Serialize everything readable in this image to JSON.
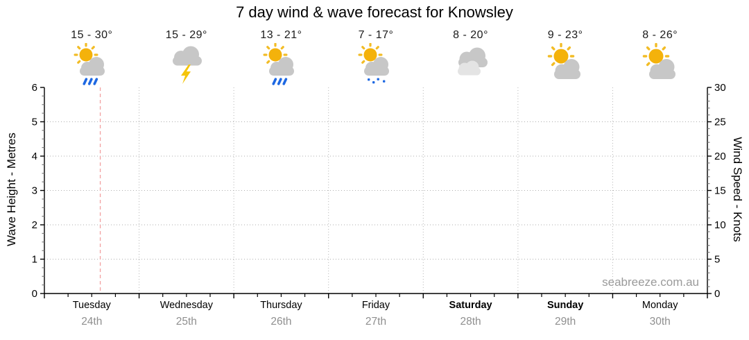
{
  "chart_data": {
    "type": "forecast-chart",
    "title": "7 day wind & wave forecast for Knowsley",
    "ylabel_left": "Wave Height - Metres",
    "ylabel_right": "Wind Speed - Knots",
    "left_axis": {
      "ticks": [
        0,
        1,
        2,
        3,
        4,
        5,
        6
      ],
      "range": [
        0,
        6
      ],
      "minor_step": 0.25
    },
    "right_axis": {
      "ticks": [
        0,
        5,
        10,
        15,
        20,
        25,
        30
      ],
      "range": [
        0,
        30
      ],
      "minor_step": 1
    },
    "x_axis": {
      "minor_ticks_per_day": 4
    },
    "grid": {
      "horizontal_at_metres": [
        1,
        2,
        3,
        4,
        5
      ],
      "vertical_at_day_boundaries": true,
      "style": "dotted"
    },
    "series": [],
    "now_marker": {
      "day_index": 0,
      "fraction_of_day": 0.59
    },
    "days": [
      {
        "name": "Tuesday",
        "date": "24th",
        "temp_range": "15 - 30°",
        "low": 15,
        "high": 30,
        "condition": "partly-cloudy-rain",
        "weekend": false
      },
      {
        "name": "Wednesday",
        "date": "25th",
        "temp_range": "15 - 29°",
        "low": 15,
        "high": 29,
        "condition": "thunderstorm",
        "weekend": false
      },
      {
        "name": "Thursday",
        "date": "26th",
        "temp_range": "13 - 21°",
        "low": 13,
        "high": 21,
        "condition": "partly-cloudy-rain",
        "weekend": false
      },
      {
        "name": "Friday",
        "date": "27th",
        "temp_range": "7 - 17°",
        "low": 7,
        "high": 17,
        "condition": "partly-cloudy-showers",
        "weekend": false
      },
      {
        "name": "Saturday",
        "date": "28th",
        "temp_range": "8 - 20°",
        "low": 8,
        "high": 20,
        "condition": "cloudy",
        "weekend": true
      },
      {
        "name": "Sunday",
        "date": "29th",
        "temp_range": "9 - 23°",
        "low": 9,
        "high": 23,
        "condition": "partly-cloudy",
        "weekend": true
      },
      {
        "name": "Monday",
        "date": "30th",
        "temp_range": "8 - 26°",
        "low": 8,
        "high": 26,
        "condition": "partly-cloudy",
        "weekend": false
      }
    ]
  },
  "watermark": "seabreeze.com.au",
  "colors": {
    "sun": "#F4B20B",
    "sun_ray": "#F2BC25",
    "cloud": "#C7C7C7",
    "cloud_light": "#E4E4E4",
    "rain": "#1E68E2",
    "lightning": "#F5C50A",
    "grid": "#ADADAD",
    "day_line": "#B5B5B5",
    "now_line": "#F2A0A0",
    "axis": "#000000",
    "minor_tick": "#777777",
    "tick_label": "#000000",
    "date_text": "#8f8f8f",
    "watermark_text": "#9a9a9a"
  }
}
